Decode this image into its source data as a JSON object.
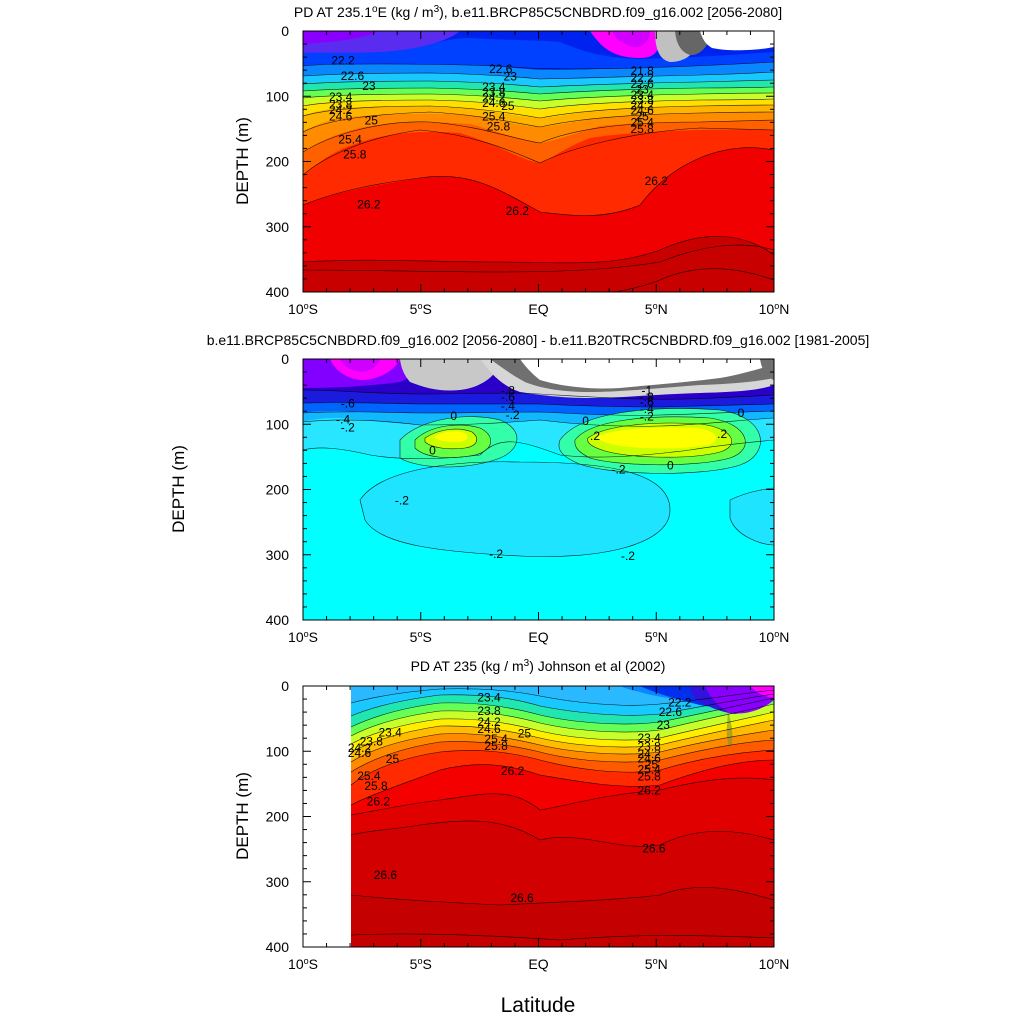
{
  "figure": {
    "xlabel": "Latitude"
  },
  "colors": {
    "ramp": [
      "#7f00ff",
      "#9f20ff",
      "#5d2df2",
      "#2b31e6",
      "#0026ff",
      "#004fff",
      "#0a7aff",
      "#1aa7ff",
      "#22d3ff",
      "#4bffdd",
      "#6bff9a",
      "#9cff6a",
      "#c6ff3a",
      "#fffe26",
      "#ffd400",
      "#ffb000",
      "#ff8a00",
      "#ff6a00",
      "#ff4b00",
      "#ff2a00",
      "#f00000",
      "#d80000",
      "#c00000"
    ],
    "diff_ramp": [
      "#7f00ff",
      "#cc00ff",
      "#ff00ff",
      "#c8c8c8",
      "#6e6e6e",
      "#2200cc",
      "#0026ff",
      "#0061ff",
      "#12b6ff",
      "#22e2ff",
      "#00ffff",
      "#33ffaa",
      "#66ff44",
      "#ccff00",
      "#ffff00"
    ]
  },
  "chart_data": [
    {
      "type": "contour",
      "title_pre": "PD AT 235.1",
      "title_sup1": "o",
      "title_mid": "E (kg / m",
      "title_sup2": "3",
      "title_post": "), b.e11.BRCP85C5CNBDRD.f09_g16.002 [2056-2080]",
      "ylabel": "DEPTH (m)",
      "xlim": [
        -10,
        10
      ],
      "ylim": [
        0,
        400
      ],
      "x_ticks": [
        {
          "value": -10,
          "num": "10",
          "hemi": "S"
        },
        {
          "value": -5,
          "num": "5",
          "hemi": "S"
        },
        {
          "value": 0,
          "num": "EQ",
          "hemi": ""
        },
        {
          "value": 5,
          "num": "5",
          "hemi": "N"
        },
        {
          "value": 10,
          "num": "10",
          "hemi": "N"
        }
      ],
      "y_ticks": [
        0,
        100,
        200,
        300,
        400
      ],
      "contour_labels": [
        {
          "text": "22.2",
          "x": -8.3,
          "y": 45
        },
        {
          "text": "22.6",
          "x": -7.9,
          "y": 69
        },
        {
          "text": "23",
          "x": -7.2,
          "y": 84
        },
        {
          "text": "23.4",
          "x": -8.4,
          "y": 101
        },
        {
          "text": "23.8",
          "x": -8.4,
          "y": 113
        },
        {
          "text": "24.2",
          "x": -8.4,
          "y": 121
        },
        {
          "text": "24.6",
          "x": -8.4,
          "y": 131
        },
        {
          "text": "25",
          "x": -7.1,
          "y": 137
        },
        {
          "text": "25.4",
          "x": -8.0,
          "y": 166
        },
        {
          "text": "25.8",
          "x": -7.8,
          "y": 189
        },
        {
          "text": "26.2",
          "x": -7.2,
          "y": 266
        },
        {
          "text": "22.6",
          "x": -1.6,
          "y": 58
        },
        {
          "text": "23",
          "x": -1.2,
          "y": 70
        },
        {
          "text": "23.4",
          "x": -1.9,
          "y": 86
        },
        {
          "text": "23.8",
          "x": -1.9,
          "y": 94
        },
        {
          "text": "24.2",
          "x": -1.9,
          "y": 102
        },
        {
          "text": "24.6",
          "x": -1.9,
          "y": 110
        },
        {
          "text": "25",
          "x": -1.3,
          "y": 115
        },
        {
          "text": "25.4",
          "x": -1.9,
          "y": 131
        },
        {
          "text": "25.8",
          "x": -1.7,
          "y": 146
        },
        {
          "text": "26.2",
          "x": -0.9,
          "y": 276
        },
        {
          "text": "21.8",
          "x": 4.4,
          "y": 61
        },
        {
          "text": "22.2",
          "x": 4.4,
          "y": 72
        },
        {
          "text": "22.6",
          "x": 4.4,
          "y": 81
        },
        {
          "text": "23",
          "x": 4.4,
          "y": 90
        },
        {
          "text": "23.4",
          "x": 4.4,
          "y": 98
        },
        {
          "text": "23.8",
          "x": 4.4,
          "y": 106
        },
        {
          "text": "24.2",
          "x": 4.4,
          "y": 114
        },
        {
          "text": "24.6",
          "x": 4.4,
          "y": 122
        },
        {
          "text": "25",
          "x": 4.4,
          "y": 131
        },
        {
          "text": "25.4",
          "x": 4.4,
          "y": 140
        },
        {
          "text": "25.8",
          "x": 4.4,
          "y": 150
        },
        {
          "text": "26.2",
          "x": 5.0,
          "y": 230
        }
      ]
    },
    {
      "type": "contour",
      "title": "b.e11.BRCP85C5CNBDRD.f09_g16.002 [2056-2080] - b.e11.B20TRC5CNBDRD.f09_g16.002 [1981-2005]",
      "ylabel": "DEPTH (m)",
      "xlim": [
        -10,
        10
      ],
      "ylim": [
        0,
        400
      ],
      "x_ticks": [
        {
          "value": -10,
          "num": "10",
          "hemi": "S"
        },
        {
          "value": -5,
          "num": "5",
          "hemi": "S"
        },
        {
          "value": 0,
          "num": "EQ",
          "hemi": ""
        },
        {
          "value": 5,
          "num": "5",
          "hemi": "N"
        },
        {
          "value": 10,
          "num": "10",
          "hemi": "N"
        }
      ],
      "y_ticks": [
        0,
        100,
        200,
        300,
        400
      ],
      "contour_labels": [
        {
          "text": "-.6",
          "x": -8.1,
          "y": 68
        },
        {
          "text": "-.4",
          "x": -8.3,
          "y": 93
        },
        {
          "text": "-.2",
          "x": -8.1,
          "y": 105
        },
        {
          "text": "-.8",
          "x": -1.3,
          "y": 48
        },
        {
          "text": "-.6",
          "x": -1.3,
          "y": 58
        },
        {
          "text": "-.4",
          "x": -1.3,
          "y": 72
        },
        {
          "text": "-.2",
          "x": -1.1,
          "y": 86
        },
        {
          "text": "0",
          "x": -3.6,
          "y": 87
        },
        {
          "text": "0",
          "x": -4.5,
          "y": 140
        },
        {
          "text": "-1",
          "x": 4.6,
          "y": 48
        },
        {
          "text": "-.8",
          "x": 4.6,
          "y": 58
        },
        {
          "text": "-.6",
          "x": 4.6,
          "y": 66
        },
        {
          "text": "-.4",
          "x": 4.6,
          "y": 77
        },
        {
          "text": "-.2",
          "x": 4.6,
          "y": 88
        },
        {
          "text": "0",
          "x": 2.0,
          "y": 95
        },
        {
          "text": "0",
          "x": 8.6,
          "y": 83
        },
        {
          "text": ".2",
          "x": 2.4,
          "y": 118
        },
        {
          "text": ".2",
          "x": 7.8,
          "y": 115
        },
        {
          "text": "0",
          "x": 5.6,
          "y": 163
        },
        {
          "text": "-.2",
          "x": 3.4,
          "y": 169
        },
        {
          "text": "-.2",
          "x": -5.8,
          "y": 217
        },
        {
          "text": "-.2",
          "x": -1.8,
          "y": 299
        },
        {
          "text": "-.2",
          "x": 3.8,
          "y": 302
        }
      ]
    },
    {
      "type": "contour",
      "title_pre": "PD AT 235 (kg / m",
      "title_sup": "3",
      "title_post": ") Johnson et al (2002)",
      "ylabel": "DEPTH (m)",
      "xlim": [
        -10,
        10
      ],
      "ylim": [
        0,
        400
      ],
      "data_start_lat": -8,
      "x_ticks": [
        {
          "value": -10,
          "num": "10",
          "hemi": "S"
        },
        {
          "value": -5,
          "num": "5",
          "hemi": "S"
        },
        {
          "value": 0,
          "num": "EQ",
          "hemi": ""
        },
        {
          "value": 5,
          "num": "5",
          "hemi": "N"
        },
        {
          "value": 10,
          "num": "10",
          "hemi": "N"
        }
      ],
      "y_ticks": [
        0,
        100,
        200,
        300,
        400
      ],
      "contour_labels": [
        {
          "text": "23.4",
          "x": -6.3,
          "y": 71
        },
        {
          "text": "23.8",
          "x": -7.1,
          "y": 85
        },
        {
          "text": "24.2",
          "x": -7.6,
          "y": 95
        },
        {
          "text": "24.6",
          "x": -7.6,
          "y": 103
        },
        {
          "text": "25",
          "x": -6.2,
          "y": 112
        },
        {
          "text": "25.4",
          "x": -7.2,
          "y": 138
        },
        {
          "text": "25.8",
          "x": -6.9,
          "y": 153
        },
        {
          "text": "26.2",
          "x": -6.8,
          "y": 177
        },
        {
          "text": "26.6",
          "x": -6.5,
          "y": 290
        },
        {
          "text": "23.4",
          "x": -2.1,
          "y": 18
        },
        {
          "text": "23.8",
          "x": -2.1,
          "y": 38
        },
        {
          "text": "24.2",
          "x": -2.1,
          "y": 55
        },
        {
          "text": "24.6",
          "x": -2.1,
          "y": 66
        },
        {
          "text": "25",
          "x": -0.6,
          "y": 73
        },
        {
          "text": "25.4",
          "x": -1.8,
          "y": 81
        },
        {
          "text": "25.8",
          "x": -1.8,
          "y": 92
        },
        {
          "text": "26.2",
          "x": -1.1,
          "y": 130
        },
        {
          "text": "26.6",
          "x": -0.7,
          "y": 325
        },
        {
          "text": "22.2",
          "x": 6.0,
          "y": 25
        },
        {
          "text": "22.6",
          "x": 5.6,
          "y": 40
        },
        {
          "text": "23",
          "x": 5.3,
          "y": 60
        },
        {
          "text": "23.4",
          "x": 4.7,
          "y": 80
        },
        {
          "text": "23.8",
          "x": 4.7,
          "y": 93
        },
        {
          "text": "24.2",
          "x": 4.7,
          "y": 104
        },
        {
          "text": "24.6",
          "x": 4.7,
          "y": 111
        },
        {
          "text": "25",
          "x": 4.8,
          "y": 120
        },
        {
          "text": "25.4",
          "x": 4.7,
          "y": 128
        },
        {
          "text": "25.8",
          "x": 4.7,
          "y": 139
        },
        {
          "text": "26.2",
          "x": 4.7,
          "y": 160
        },
        {
          "text": "26.6",
          "x": 4.9,
          "y": 249
        }
      ]
    }
  ]
}
